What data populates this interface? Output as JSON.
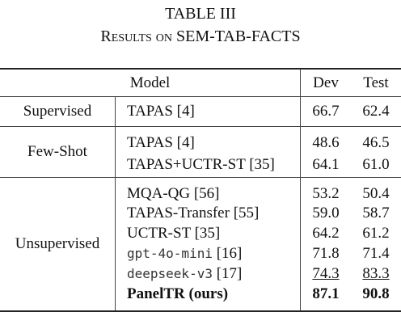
{
  "title": {
    "number": "TABLE III",
    "caption": "Results on SEM-TAB-FACTS"
  },
  "table": {
    "header": [
      "Model",
      "Dev",
      "Test"
    ],
    "groups": [
      {
        "name": "Supervised",
        "rows": [
          {
            "model": "TAPAS",
            "ref": "[4]",
            "dev": "66.7",
            "test": "62.4"
          }
        ]
      },
      {
        "name": "Few-Shot",
        "rows": [
          {
            "model": "TAPAS",
            "ref": "[4]",
            "dev": "48.6",
            "test": "46.5"
          },
          {
            "model": "TAPAS+UCTR-ST",
            "ref": "[35]",
            "dev": "64.1",
            "test": "61.0"
          }
        ]
      },
      {
        "name": "Unsupervised",
        "rows": [
          {
            "model": "MQA-QG",
            "ref": "[56]",
            "dev": "53.2",
            "test": "50.4"
          },
          {
            "model": "TAPAS-Transfer",
            "ref": "[55]",
            "dev": "59.0",
            "test": "58.7"
          },
          {
            "model": "UCTR-ST",
            "ref": "[35]",
            "dev": "64.2",
            "test": "61.2"
          },
          {
            "model": "gpt-4o-mini",
            "ref": "[16]",
            "dev": "71.8",
            "test": "71.4"
          },
          {
            "model": "deepseek-v3",
            "ref": "[17]",
            "dev": "74.3",
            "test": "83.3"
          },
          {
            "model": "PanelTR (ours)",
            "dev": "87.1",
            "test": "90.8"
          }
        ]
      }
    ]
  }
}
